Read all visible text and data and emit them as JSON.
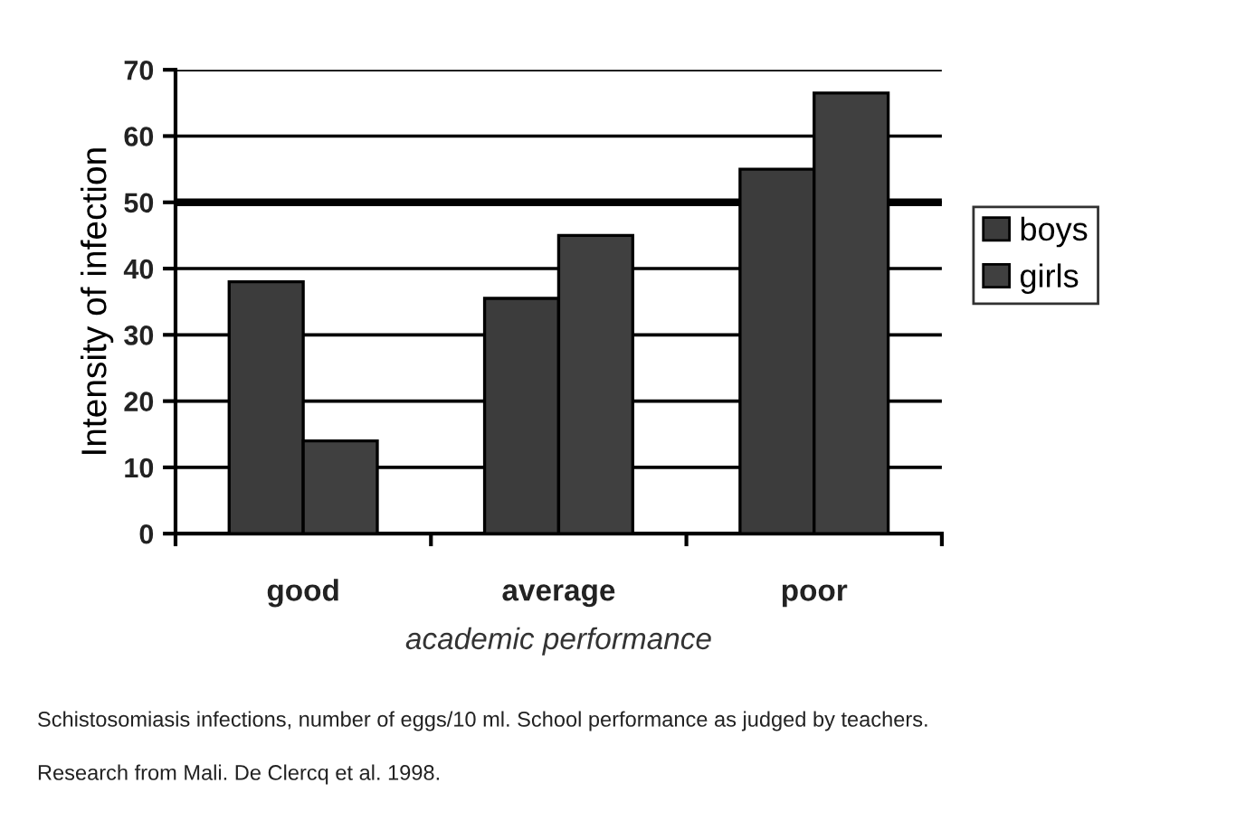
{
  "chart_data": {
    "type": "bar",
    "xlabel": "academic performance",
    "ylabel": "Intensity of infection",
    "categories": [
      "good",
      "average",
      "poor"
    ],
    "series": [
      {
        "name": "boys",
        "color": "#3c3c3c",
        "values": [
          38,
          35.5,
          55
        ]
      },
      {
        "name": "girls",
        "color": "#404040",
        "values": [
          14,
          45,
          66.5
        ]
      }
    ],
    "ylim": [
      0,
      70
    ],
    "yticks": [
      0,
      10,
      20,
      30,
      40,
      50,
      60,
      70
    ],
    "grid": "y",
    "legend": "right",
    "ref_lines": [
      {
        "axis": "y",
        "value": 50,
        "label": null,
        "color": "#000000"
      }
    ],
    "annotations": [
      "Schistosomiasis infections, number of eggs/10 ml. School performance as judged by teachers.",
      "Research from Mali. De Clercq et al. 1998."
    ]
  }
}
